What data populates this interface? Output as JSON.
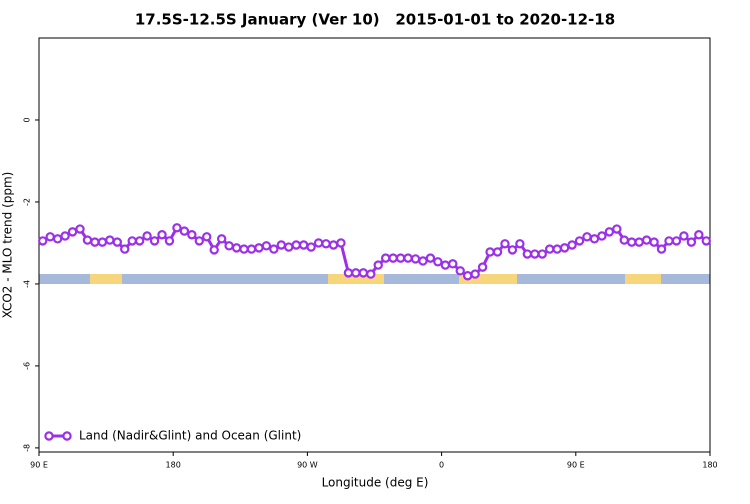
{
  "chart_data": {
    "type": "line",
    "title": "17.5S-12.5S January (Ver 10)   2015-01-01 to 2020-12-18",
    "x_label": "Longitude (deg E)",
    "y_label": "XCO2 - MLO trend (ppm)",
    "x": [
      92.5,
      97.5,
      102.5,
      107.5,
      112.5,
      117.5,
      122.5,
      127.5,
      132.5,
      137.5,
      142.5,
      147.5,
      152.5,
      157.5,
      162.5,
      167.5,
      172.5,
      177.5,
      182.5,
      187.5,
      192.5,
      197.5,
      202.5,
      207.5,
      212.5,
      217.5,
      222.5,
      227.5,
      232.5,
      237.5,
      242.5,
      247.5,
      252.5,
      257.5,
      262.5,
      267.5,
      272.5,
      277.5,
      282.5,
      287.5,
      292.5,
      297.5,
      302.5,
      307.5,
      312.5,
      317.5,
      322.5,
      327.5,
      332.5,
      337.5,
      342.5,
      347.5,
      352.5,
      357.5,
      362.5,
      367.5,
      372.5,
      377.5,
      382.5,
      387.5,
      392.5,
      397.5,
      402.5,
      407.5,
      412.5,
      417.5,
      422.5,
      427.5,
      432.5,
      437.5,
      442.5,
      447.5,
      452.5,
      457.5,
      462.5,
      467.5,
      472.5,
      477.5,
      482.5,
      487.5,
      492.5,
      497.5,
      502.5,
      507.5,
      512.5,
      517.5,
      522.5,
      527.5,
      532.5,
      537.5
    ],
    "series": [
      {
        "name": "Land (Nadir&Glint) and Ocean (Glint)",
        "color": "#9b30e8",
        "values": [
          -2.95,
          -2.85,
          -2.9,
          -2.83,
          -2.73,
          -2.66,
          -2.93,
          -2.98,
          -2.98,
          -2.93,
          -2.98,
          -3.15,
          -2.95,
          -2.95,
          -2.83,
          -2.95,
          -2.8,
          -2.95,
          -2.63,
          -2.71,
          -2.8,
          -2.95,
          -2.85,
          -3.17,
          -2.9,
          -3.07,
          -3.12,
          -3.15,
          -3.15,
          -3.12,
          -3.07,
          -3.15,
          -3.05,
          -3.1,
          -3.05,
          -3.05,
          -3.1,
          -3.0,
          -3.02,
          -3.05,
          -3.0,
          -3.73,
          -3.73,
          -3.73,
          -3.76,
          -3.54,
          -3.37,
          -3.37,
          -3.37,
          -3.37,
          -3.39,
          -3.44,
          -3.37,
          -3.46,
          -3.54,
          -3.51,
          -3.68,
          -3.8,
          -3.76,
          -3.59,
          -3.22,
          -3.22,
          -3.02,
          -3.17,
          -3.02,
          -3.27,
          -3.27,
          -3.27,
          -3.15,
          -3.15,
          -3.12,
          -3.05,
          -2.95,
          -2.85,
          -2.9,
          -2.83,
          -2.73,
          -2.66,
          -2.93,
          -2.98,
          -2.98,
          -2.93,
          -2.98,
          -3.15,
          -2.95,
          -2.95,
          -2.83,
          -2.98,
          -2.8,
          -2.95
        ]
      }
    ],
    "xlim": [
      90,
      540
    ],
    "xticks": [
      {
        "value": 90,
        "label": "90 E"
      },
      {
        "value": 180,
        "label": "180"
      },
      {
        "value": 270,
        "label": "90 W"
      },
      {
        "value": 360,
        "label": "0"
      },
      {
        "value": 450,
        "label": "90 E"
      },
      {
        "value": 540,
        "label": "180"
      }
    ],
    "ylim": [
      -8.1,
      2
    ],
    "yticks": [
      0,
      -2,
      -4,
      -6,
      -8
    ],
    "legend": "bottom-left"
  }
}
